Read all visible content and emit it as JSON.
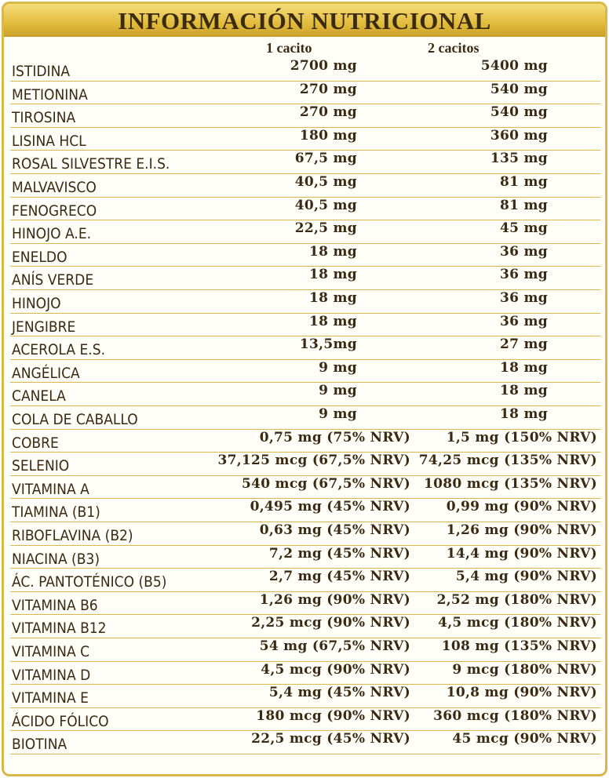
{
  "header": {
    "title": "INFORMACIÓN NUTRICIONAL"
  },
  "table": {
    "columns": [
      "1 cacito",
      "2 cacitos"
    ],
    "rows": [
      [
        "ISTIDINA",
        "2700 mg",
        "5400 mg"
      ],
      [
        "METIONINA",
        "270 mg",
        "540 mg"
      ],
      [
        "TIROSINA",
        "270 mg",
        "540 mg"
      ],
      [
        "LISINA HCL",
        "180 mg",
        "360 mg"
      ],
      [
        "ROSAL SILVESTRE E.I.S.",
        "67,5 mg",
        "135 mg"
      ],
      [
        "MALVAVISCO",
        "40,5 mg",
        "81 mg"
      ],
      [
        "FENOGRECO",
        "40,5 mg",
        "81 mg"
      ],
      [
        "HINOJO A.E.",
        "22,5 mg",
        "45 mg"
      ],
      [
        "ENELDO",
        "18 mg",
        "36 mg"
      ],
      [
        "ANÍS VERDE",
        "18 mg",
        "36 mg"
      ],
      [
        "HINOJO",
        "18 mg",
        "36 mg"
      ],
      [
        "JENGIBRE",
        "18 mg",
        "36 mg"
      ],
      [
        "ACEROLA E.S.",
        "13,5mg",
        "27 mg"
      ],
      [
        "ANGÉLICA",
        "9 mg",
        "18 mg"
      ],
      [
        "CANELA",
        "9 mg",
        "18 mg"
      ],
      [
        "COLA DE CABALLO",
        "9 mg",
        "18 mg"
      ],
      [
        "COBRE",
        "0,75 mg (75% NRV)",
        "1,5 mg (150% NRV)"
      ],
      [
        "SELENIO",
        "37,125 mcg (67,5% NRV)",
        "74,25 mcg (135% NRV)"
      ],
      [
        "VITAMINA A",
        "540 mcg (67,5% NRV)",
        "1080 mcg (135% NRV)"
      ],
      [
        "TIAMINA (B1)",
        "0,495 mg (45% NRV)",
        "0,99 mg (90% NRV)"
      ],
      [
        "RIBOFLAVINA (B2)",
        "0,63 mg (45% NRV)",
        "1,26 mg (90% NRV)"
      ],
      [
        "NIACINA (B3)",
        "7,2 mg (45% NRV)",
        "14,4 mg (90% NRV)"
      ],
      [
        "ÁC. PANTOTÉNICO (B5)",
        "2,7 mg (45% NRV)",
        "5,4 mg (90% NRV)"
      ],
      [
        "VITAMINA B6",
        "1,26 mg (90% NRV)",
        "2,52 mg (180% NRV)"
      ],
      [
        "VITAMINA B12",
        "2,25 mcg (90% NRV)",
        "4,5 mcg (180% NRV)"
      ],
      [
        "VITAMINA C",
        "54 mg (67,5% NRV)",
        "108 mg (135% NRV)"
      ],
      [
        "VITAMINA D",
        "4,5 mcg (90% NRV)",
        "9 mcg (180% NRV)"
      ],
      [
        "VITAMINA E",
        "5,4 mg (45% NRV)",
        "10,8 mg (90% NRV)"
      ],
      [
        "ÁCIDO FÓLICO",
        "180 mcg (90% NRV)",
        "360 mcg (180% NRV)"
      ],
      [
        "BIOTINA",
        "22,5 mcg (45% NRV)",
        "45 mcg (90% NRV)"
      ]
    ]
  }
}
